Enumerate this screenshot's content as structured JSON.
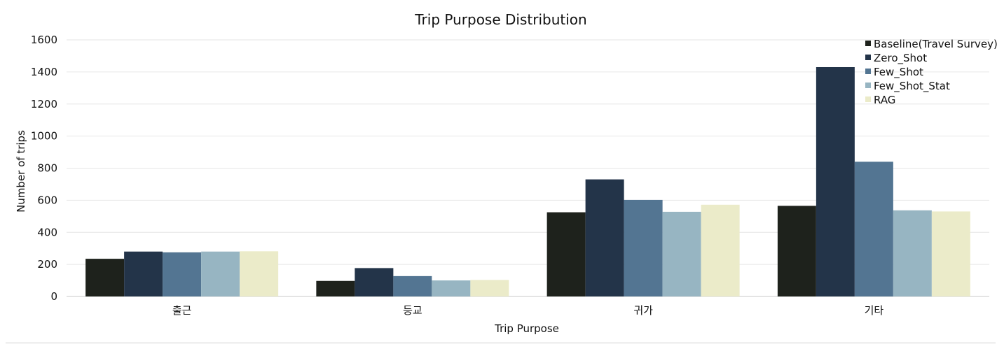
{
  "chart_data": {
    "type": "bar",
    "title": "Trip Purpose Distribution",
    "xlabel": "Trip Purpose",
    "ylabel": "Number of trips",
    "ylim": [
      0,
      1600
    ],
    "yticks": [
      0,
      200,
      400,
      600,
      800,
      1000,
      1200,
      1400,
      1600
    ],
    "grid": true,
    "legend_position": "top-right",
    "categories": [
      "출근",
      "등교",
      "귀가",
      "기타"
    ],
    "series": [
      {
        "name": "Baseline(Travel Survey)",
        "color": "#1e221c",
        "values": [
          235,
          97,
          525,
          565
        ]
      },
      {
        "name": "Zero_Shot",
        "color": "#233449",
        "values": [
          280,
          177,
          730,
          1430
        ]
      },
      {
        "name": "Few_Shot",
        "color": "#537592",
        "values": [
          275,
          127,
          602,
          840
        ]
      },
      {
        "name": "Few_Shot_Stat",
        "color": "#97b5c2",
        "values": [
          280,
          100,
          528,
          537
        ]
      },
      {
        "name": "RAG",
        "color": "#ebebc9",
        "values": [
          282,
          103,
          572,
          530
        ]
      }
    ]
  }
}
